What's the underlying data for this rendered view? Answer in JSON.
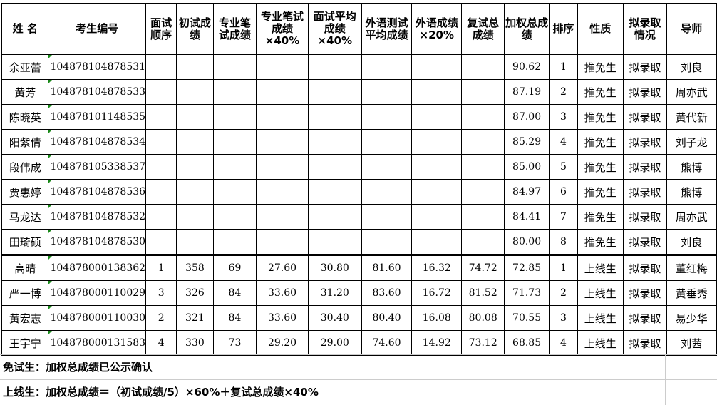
{
  "headers": [
    "姓 名",
    "考生编号",
    "面试顺序",
    "初试成绩",
    "专业笔试成绩",
    "专业笔试成绩×40%",
    "面试平均成绩×40%",
    "外语测试平均成绩",
    "外语成绩×20%",
    "复试总成绩",
    "加权总成绩",
    "排序",
    "性质",
    "拟录取情况",
    "导师"
  ],
  "rows": [
    [
      "余亚蕾",
      "104878104878531",
      "",
      "",
      "",
      "",
      "",
      "",
      "",
      "",
      "90.62",
      "1",
      "推免生",
      "拟录取",
      "刘良"
    ],
    [
      "黄芳",
      "104878104878533",
      "",
      "",
      "",
      "",
      "",
      "",
      "",
      "",
      "87.19",
      "2",
      "推免生",
      "拟录取",
      "周亦武"
    ],
    [
      "陈晓英",
      "104878101148535",
      "",
      "",
      "",
      "",
      "",
      "",
      "",
      "",
      "87.00",
      "3",
      "推免生",
      "拟录取",
      "黄代新"
    ],
    [
      "阳紫倩",
      "104878104878534",
      "",
      "",
      "",
      "",
      "",
      "",
      "",
      "",
      "85.29",
      "4",
      "推免生",
      "拟录取",
      "刘子龙"
    ],
    [
      "段伟成",
      "104878105338537",
      "",
      "",
      "",
      "",
      "",
      "",
      "",
      "",
      "85.00",
      "5",
      "推免生",
      "拟录取",
      "熊博"
    ],
    [
      "贾惠婷",
      "104878104878536",
      "",
      "",
      "",
      "",
      "",
      "",
      "",
      "",
      "84.97",
      "6",
      "推免生",
      "拟录取",
      "熊博"
    ],
    [
      "马龙达",
      "104878104878532",
      "",
      "",
      "",
      "",
      "",
      "",
      "",
      "",
      "84.41",
      "7",
      "推免生",
      "拟录取",
      "周亦武"
    ],
    [
      "田琦硕",
      "104878104878530",
      "",
      "",
      "",
      "",
      "",
      "",
      "",
      "",
      "80.00",
      "8",
      "推免生",
      "拟录取",
      "刘良"
    ],
    [
      "高晴",
      "104878000138362",
      "1",
      "358",
      "69",
      "27.60",
      "30.80",
      "81.60",
      "16.32",
      "74.72",
      "72.85",
      "1",
      "上线生",
      "拟录取",
      "董红梅"
    ],
    [
      "严一博",
      "104878000110029",
      "3",
      "326",
      "84",
      "33.60",
      "31.20",
      "83.60",
      "16.72",
      "81.52",
      "71.73",
      "2",
      "上线生",
      "拟录取",
      "黄垂秀"
    ],
    [
      "黄宏志",
      "104878000110030",
      "2",
      "321",
      "84",
      "33.60",
      "30.40",
      "80.40",
      "16.08",
      "80.08",
      "70.55",
      "3",
      "上线生",
      "拟录取",
      "易少华"
    ],
    [
      "王宇宁",
      "104878000131583",
      "4",
      "330",
      "73",
      "29.20",
      "29.00",
      "74.60",
      "14.92",
      "73.12",
      "68.85",
      "4",
      "上线生",
      "拟录取",
      "刘茜"
    ]
  ],
  "notes": [
    "免试生：加权总成绩已公示确认",
    "上线生：加权总成绩＝（初试成绩/5）×60%＋复试总成绩×40%"
  ]
}
